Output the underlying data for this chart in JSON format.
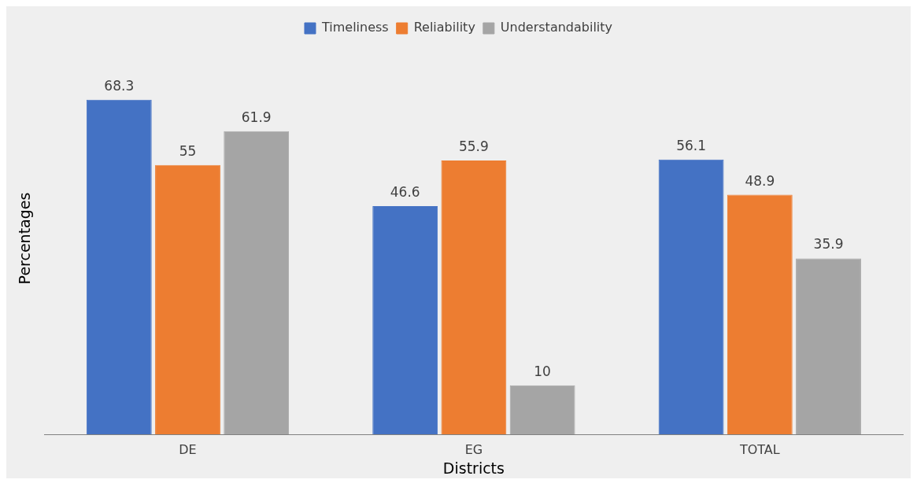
{
  "chart_data": {
    "type": "bar",
    "xlabel": "Districts",
    "ylabel": "Percentages",
    "categories": [
      "DE",
      "EG",
      "TOTAL"
    ],
    "series": [
      {
        "name": "Timeliness",
        "color": "#4472c4",
        "values": [
          68.3,
          46.6,
          56.1
        ]
      },
      {
        "name": "Reliability",
        "color": "#ed7d31",
        "values": [
          55,
          55.9,
          48.9
        ]
      },
      {
        "name": "Understandability",
        "color": "#a5a5a5",
        "values": [
          61.9,
          10,
          35.9
        ]
      }
    ],
    "data_labels": true,
    "legend": "top",
    "grid": false
  }
}
